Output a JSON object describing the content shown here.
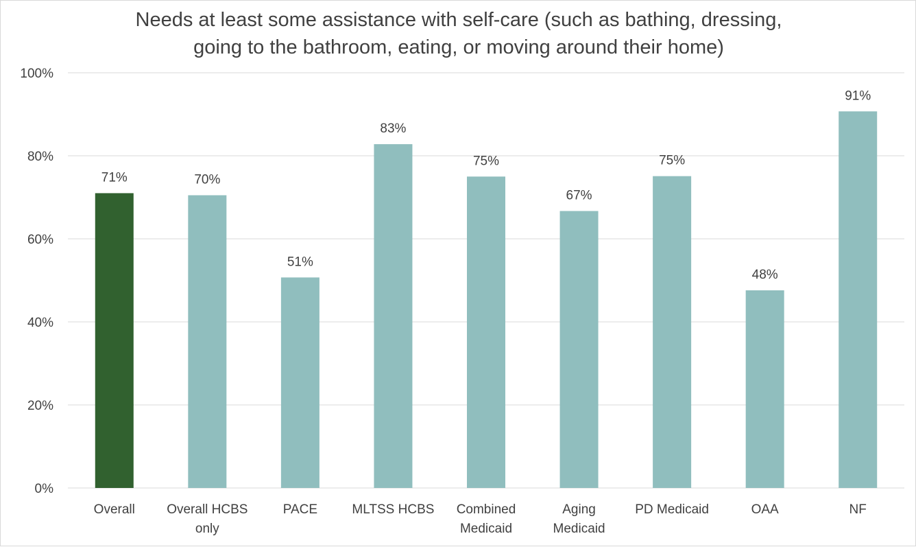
{
  "chart_data": {
    "type": "bar",
    "title_lines": [
      "Needs at least some assistance with self-care (such as bathing, dressing,",
      "going to the bathroom, eating, or moving around their home)"
    ],
    "categories": [
      [
        "Overall"
      ],
      [
        "Overall HCBS",
        "only"
      ],
      [
        "PACE"
      ],
      [
        "MLTSS HCBS"
      ],
      [
        "Combined",
        "Medicaid"
      ],
      [
        "Aging",
        "Medicaid"
      ],
      [
        "PD Medicaid"
      ],
      [
        "OAA"
      ],
      [
        "NF"
      ]
    ],
    "values": [
      71,
      70.5,
      50.7,
      82.8,
      75,
      66.7,
      75.1,
      47.6,
      90.7
    ],
    "data_labels": [
      "71%",
      "70%",
      "51%",
      "83%",
      "75%",
      "67%",
      "75%",
      "48%",
      "91%"
    ],
    "colors": [
      "#31612f",
      "#90bebe",
      "#90bebe",
      "#90bebe",
      "#90bebe",
      "#90bebe",
      "#90bebe",
      "#90bebe",
      "#90bebe"
    ],
    "highlight_color": "#31612f",
    "bar_color": "#90bebe",
    "gridline_color": "#d9d9d9",
    "ylim": [
      0,
      100
    ],
    "yticks": [
      0,
      20,
      40,
      60,
      80,
      100
    ],
    "ytick_labels": [
      "0%",
      "20%",
      "40%",
      "60%",
      "80%",
      "100%"
    ],
    "grid": true,
    "legend": "none",
    "xlabel": "",
    "ylabel": ""
  }
}
